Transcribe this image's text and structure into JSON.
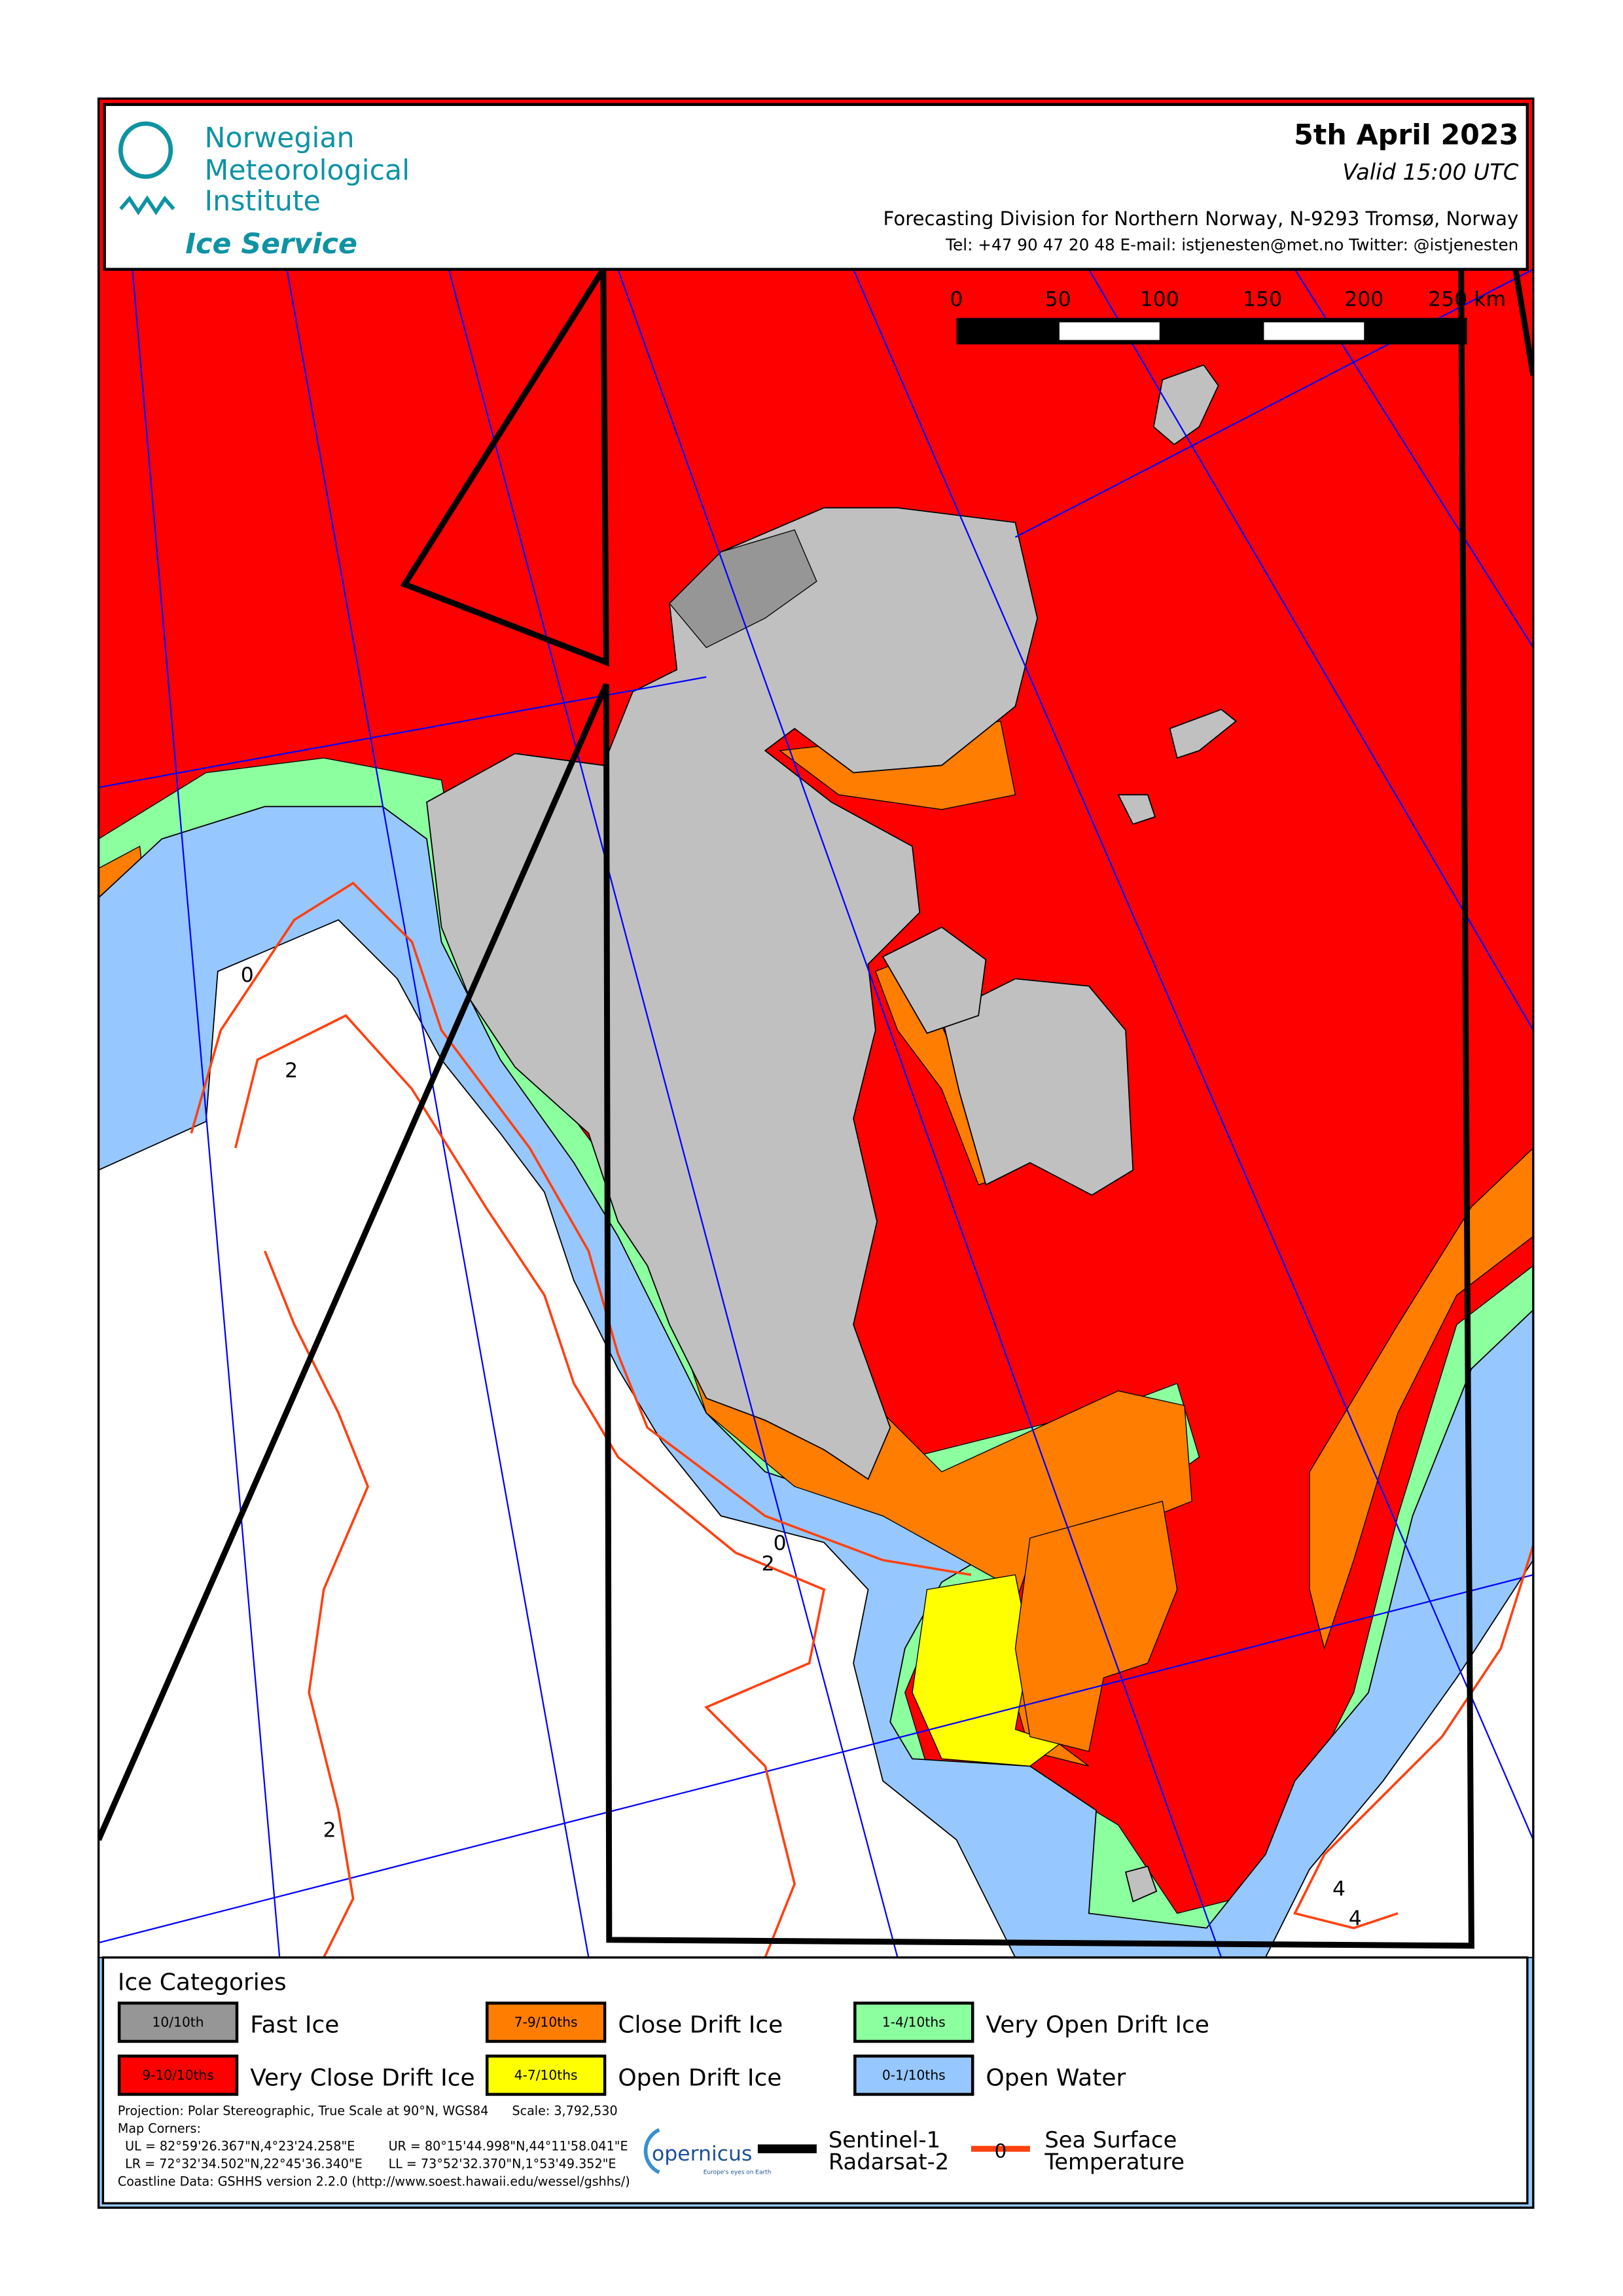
{
  "header": {
    "org_line1": "Norwegian",
    "org_line2": "Meteorological",
    "org_line3": "Institute",
    "service": "Ice Service",
    "date": "5th April 2023",
    "valid": "Valid 15:00 UTC",
    "division": "Forecasting Division for Northern Norway, N-9293 Tromsø, Norway",
    "contact": "Tel: +47 90 47 20 48   E-mail: istjenesten@met.no   Twitter: @istjenesten"
  },
  "scale_bar": {
    "ticks": [
      "0",
      "50",
      "100",
      "150",
      "200",
      "250 km"
    ]
  },
  "sst_labels": [
    "0",
    "2",
    "0",
    "2",
    "2",
    "4",
    "4"
  ],
  "legend": {
    "title": "Ice Categories",
    "categories": [
      {
        "code": "10/10th",
        "label": "Fast Ice",
        "color": "#969696"
      },
      {
        "code": "7-9/10ths",
        "label": "Close Drift Ice",
        "color": "#ff7d00"
      },
      {
        "code": "1-4/10ths",
        "label": "Very Open Drift Ice",
        "color": "#8cff9f"
      },
      {
        "code": "9-10/10ths",
        "label": "Very Close Drift Ice",
        "color": "#ff0000"
      },
      {
        "code": "4-7/10ths",
        "label": "Open Drift Ice",
        "color": "#ffff00"
      },
      {
        "code": "0-1/10ths",
        "label": "Open Water",
        "color": "#96c8ff"
      }
    ],
    "projection": "Projection: Polar Stereographic, True Scale at 90°N, WGS84",
    "scale": "Scale: 3,792,530",
    "corners_title": "Map Corners:",
    "ul": "UL = 82°59'26.367\"N,4°23'24.258\"E",
    "ur": "UR = 80°15'44.998\"N,44°11'58.041\"E",
    "lr": "LR =  72°32'34.502\"N,22°45'36.340\"E",
    "ll": "LL = 73°52'32.370\"N,1°53'49.352\"E",
    "coastline": "Coastline Data: GSHHS version 2.2.0 (http://www.soest.hawaii.edu/wessel/gshhs/)",
    "copernicus": "opernicus",
    "copernicus_tagline": "Europe's eyes on Earth",
    "sat_line1": "Sentinel-1",
    "sat_line2": "Radarsat-2",
    "sst_symbol": "0",
    "sst_line1": "Sea Surface",
    "sst_line2": "Temperature"
  },
  "colors": {
    "teal": "#0e93a3",
    "sst": "#ff4010",
    "graticule": "#0000ff",
    "land": "#c0c0c0"
  }
}
